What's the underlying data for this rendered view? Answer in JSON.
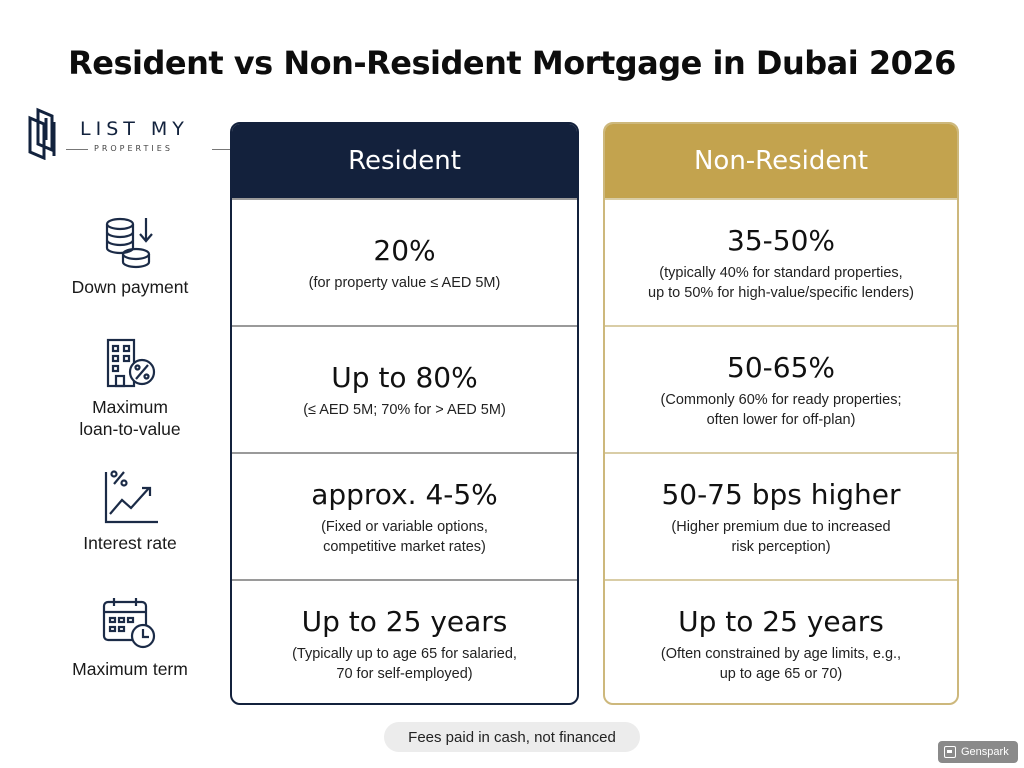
{
  "title": "Resident vs Non-Resident Mortgage in Dubai 2026",
  "logo": {
    "main": "LIST MY",
    "sub": "PROPERTIES",
    "color": "#12223d"
  },
  "colors": {
    "resident": "#13213c",
    "non_resident": "#c3a34e"
  },
  "rows": [
    {
      "label": "Down payment",
      "icon": "coins-down-arrow-icon"
    },
    {
      "label_line1": "Maximum",
      "label_line2": "loan-to-value",
      "icon": "building-percent-icon"
    },
    {
      "label": "Interest rate",
      "icon": "percent-chart-up-icon"
    },
    {
      "label": "Maximum term",
      "icon": "calendar-clock-icon"
    }
  ],
  "resident": {
    "heading": "Resident",
    "cells": [
      {
        "big": "20%",
        "small1": "(for property value ≤ AED 5M)",
        "small2": ""
      },
      {
        "big": "Up to 80%",
        "small1": "(≤ AED 5M; 70% for > AED 5M)",
        "small2": ""
      },
      {
        "big": "approx. 4-5%",
        "small1": "(Fixed or variable options,",
        "small2": "competitive market rates)"
      },
      {
        "big": "Up to 25 years",
        "small1": "(Typically up to age 65 for salaried,",
        "small2": "70 for self-employed)"
      }
    ]
  },
  "non_resident": {
    "heading": "Non-Resident",
    "cells": [
      {
        "big": "35-50%",
        "small1": "(typically 40% for standard properties,",
        "small2": "up to 50% for high-value/specific lenders)"
      },
      {
        "big": "50-65%",
        "small1": "(Commonly 60% for ready properties;",
        "small2": "often lower for off-plan)"
      },
      {
        "big": "50-75 bps higher",
        "small1": "(Higher premium due to increased",
        "small2": "risk perception)"
      },
      {
        "big": "Up to 25 years",
        "small1": "(Often constrained by age limits, e.g.,",
        "small2": "up to age 65 or 70)"
      }
    ]
  },
  "footnote": "Fees paid in cash, not financed",
  "watermark": {
    "text": "Genspark",
    "icon": "genspark-icon"
  }
}
